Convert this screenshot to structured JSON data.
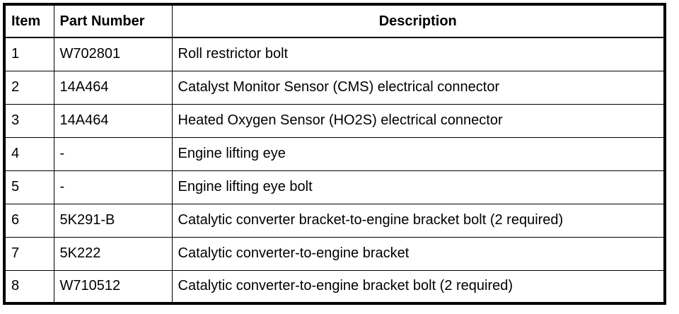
{
  "headers": {
    "item": "Item",
    "part_number": "Part Number",
    "description": "Description"
  },
  "rows": [
    {
      "item": "1",
      "part_number": "W702801",
      "description": "Roll restrictor bolt"
    },
    {
      "item": "2",
      "part_number": "14A464",
      "description": "Catalyst Monitor Sensor (CMS) electrical connector"
    },
    {
      "item": "3",
      "part_number": "14A464",
      "description": "Heated Oxygen Sensor (HO2S) electrical connector"
    },
    {
      "item": "4",
      "part_number": "-",
      "description": "Engine lifting eye"
    },
    {
      "item": "5",
      "part_number": "-",
      "description": "Engine lifting eye bolt"
    },
    {
      "item": "6",
      "part_number": "5K291-B",
      "description": "Catalytic converter bracket-to-engine bracket bolt (2 required)"
    },
    {
      "item": "7",
      "part_number": "5K222",
      "description": "Catalytic converter-to-engine bracket"
    },
    {
      "item": "8",
      "part_number": "W710512",
      "description": "Catalytic converter-to-engine bracket bolt (2 required)"
    }
  ]
}
